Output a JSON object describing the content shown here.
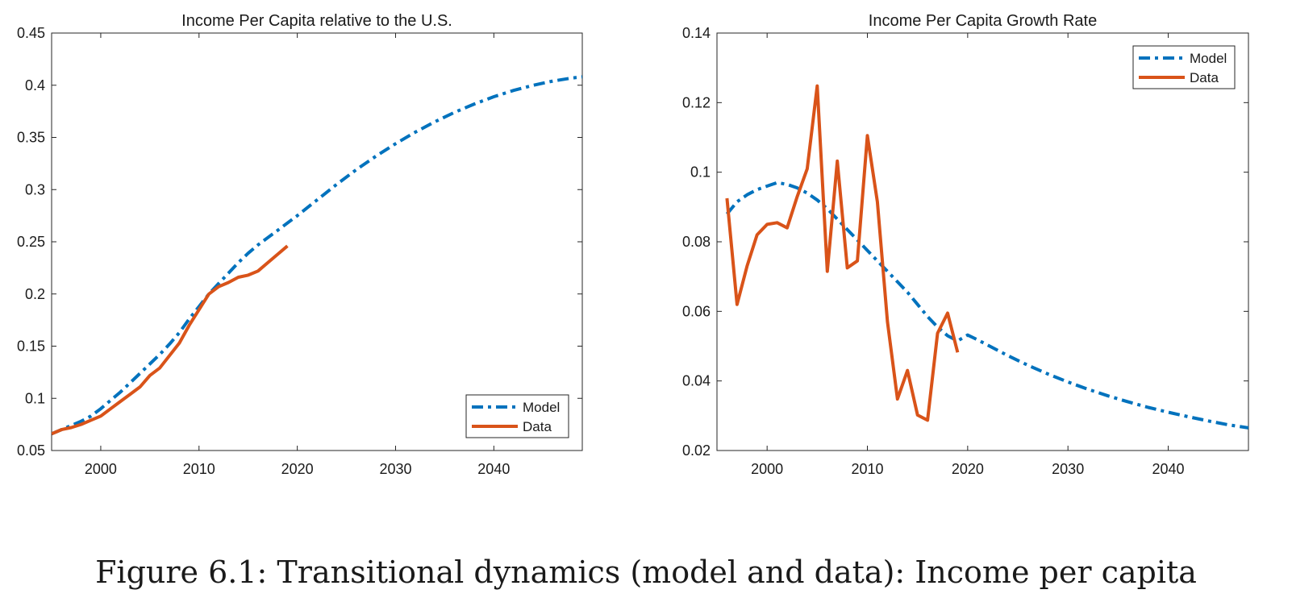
{
  "caption": "Figure 6.1: Transitional dynamics (model and data): Income per capita",
  "colors": {
    "model": "#0072BD",
    "data": "#D95319",
    "axis": "#262626"
  },
  "chart_data": [
    {
      "type": "line",
      "title": "Income Per Capita relative to the U.S.",
      "xlabel": "",
      "ylabel": "",
      "xlim": [
        1995,
        2049
      ],
      "ylim": [
        0.05,
        0.45
      ],
      "xticks": [
        2000,
        2010,
        2020,
        2030,
        2040
      ],
      "xtick_labels": [
        "2000",
        "2010",
        "2020",
        "2030",
        "2040"
      ],
      "yticks": [
        0.05,
        0.1,
        0.15,
        0.2,
        0.25,
        0.3,
        0.35,
        0.4,
        0.45
      ],
      "ytick_labels": [
        "0.05",
        "0.1",
        "0.15",
        "0.2",
        "0.25",
        "0.3",
        "0.35",
        "0.4",
        "0.45"
      ],
      "grid": false,
      "legend_position": "bottom-right",
      "series": [
        {
          "name": "Model",
          "style": "dash-dot",
          "x": [
            1995,
            1996,
            1997,
            1998,
            1999,
            2000,
            2001,
            2002,
            2003,
            2004,
            2005,
            2006,
            2007,
            2008,
            2009,
            2010,
            2011,
            2012,
            2013,
            2014,
            2015,
            2016,
            2017,
            2018,
            2019,
            2020,
            2022,
            2024,
            2026,
            2028,
            2030,
            2032,
            2034,
            2036,
            2038,
            2040,
            2042,
            2044,
            2046,
            2048,
            2049
          ],
          "y": [
            0.066,
            0.07,
            0.074,
            0.078,
            0.083,
            0.09,
            0.098,
            0.106,
            0.115,
            0.124,
            0.133,
            0.142,
            0.152,
            0.163,
            0.176,
            0.188,
            0.2,
            0.21,
            0.22,
            0.23,
            0.239,
            0.247,
            0.254,
            0.261,
            0.268,
            0.275,
            0.29,
            0.305,
            0.319,
            0.332,
            0.344,
            0.355,
            0.365,
            0.374,
            0.382,
            0.389,
            0.395,
            0.4,
            0.404,
            0.407,
            0.408
          ]
        },
        {
          "name": "Data",
          "style": "solid",
          "x": [
            1995,
            1996,
            1997,
            1998,
            1999,
            2000,
            2001,
            2002,
            2003,
            2004,
            2005,
            2006,
            2007,
            2008,
            2009,
            2010,
            2011,
            2012,
            2013,
            2014,
            2015,
            2016,
            2017,
            2018,
            2019
          ],
          "y": [
            0.066,
            0.07,
            0.072,
            0.075,
            0.079,
            0.083,
            0.09,
            0.097,
            0.104,
            0.111,
            0.122,
            0.129,
            0.141,
            0.153,
            0.17,
            0.185,
            0.2,
            0.207,
            0.211,
            0.216,
            0.218,
            0.222,
            0.23,
            0.238,
            0.246
          ]
        }
      ]
    },
    {
      "type": "line",
      "title": "Income Per Capita Growth Rate",
      "xlabel": "",
      "ylabel": "",
      "xlim": [
        1995,
        2048
      ],
      "ylim": [
        0.02,
        0.14
      ],
      "xticks": [
        2000,
        2010,
        2020,
        2030,
        2040
      ],
      "xtick_labels": [
        "2000",
        "2010",
        "2020",
        "2030",
        "2040"
      ],
      "yticks": [
        0.02,
        0.04,
        0.06,
        0.08,
        0.1,
        0.12,
        0.14
      ],
      "ytick_labels": [
        "0.02",
        "0.04",
        "0.06",
        "0.08",
        "0.1",
        "0.12",
        "0.14"
      ],
      "grid": false,
      "legend_position": "top-right",
      "series": [
        {
          "name": "Model",
          "style": "dash-dot",
          "x": [
            1996,
            1997,
            1998,
            1999,
            2000,
            2001,
            2002,
            2003,
            2004,
            2005,
            2006,
            2007,
            2008,
            2009,
            2010,
            2011,
            2012,
            2013,
            2014,
            2015,
            2016,
            2017,
            2018,
            2019,
            2020,
            2021,
            2022,
            2024,
            2026,
            2028,
            2030,
            2032,
            2034,
            2036,
            2038,
            2040,
            2042,
            2044,
            2046,
            2048
          ],
          "y": [
            0.088,
            0.0915,
            0.0935,
            0.095,
            0.096,
            0.097,
            0.0965,
            0.0955,
            0.094,
            0.092,
            0.0895,
            0.0865,
            0.0835,
            0.0805,
            0.0775,
            0.0745,
            0.0715,
            0.0685,
            0.0655,
            0.062,
            0.0585,
            0.0555,
            0.053,
            0.0515,
            0.0532,
            0.0518,
            0.0503,
            0.0473,
            0.0445,
            0.042,
            0.0397,
            0.0376,
            0.0357,
            0.034,
            0.0324,
            0.031,
            0.0297,
            0.0285,
            0.0274,
            0.0265
          ]
        },
        {
          "name": "Data",
          "style": "solid",
          "x": [
            1996,
            1997,
            1998,
            1999,
            2000,
            2001,
            2002,
            2003,
            2004,
            2005,
            2006,
            2007,
            2008,
            2009,
            2010,
            2011,
            2012,
            2013,
            2014,
            2015,
            2016,
            2017,
            2018,
            2019
          ],
          "y": [
            0.0925,
            0.062,
            0.073,
            0.082,
            0.085,
            0.0855,
            0.084,
            0.093,
            0.101,
            0.1248,
            0.0715,
            0.1032,
            0.0725,
            0.0745,
            0.1105,
            0.0915,
            0.057,
            0.0348,
            0.043,
            0.0302,
            0.0287,
            0.0537,
            0.0595,
            0.0482
          ]
        }
      ]
    }
  ]
}
